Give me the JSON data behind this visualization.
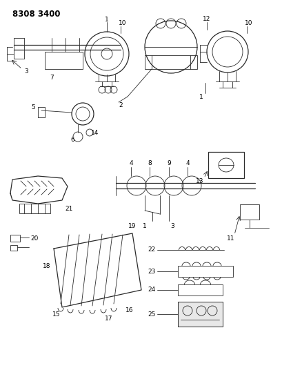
{
  "title": "8308 3400",
  "bg_color": "#ffffff",
  "line_color": "#2a2a2a",
  "text_color": "#000000",
  "title_fontsize": 8.5,
  "label_fontsize": 6.5,
  "fig_width": 4.1,
  "fig_height": 5.33,
  "dpi": 100
}
